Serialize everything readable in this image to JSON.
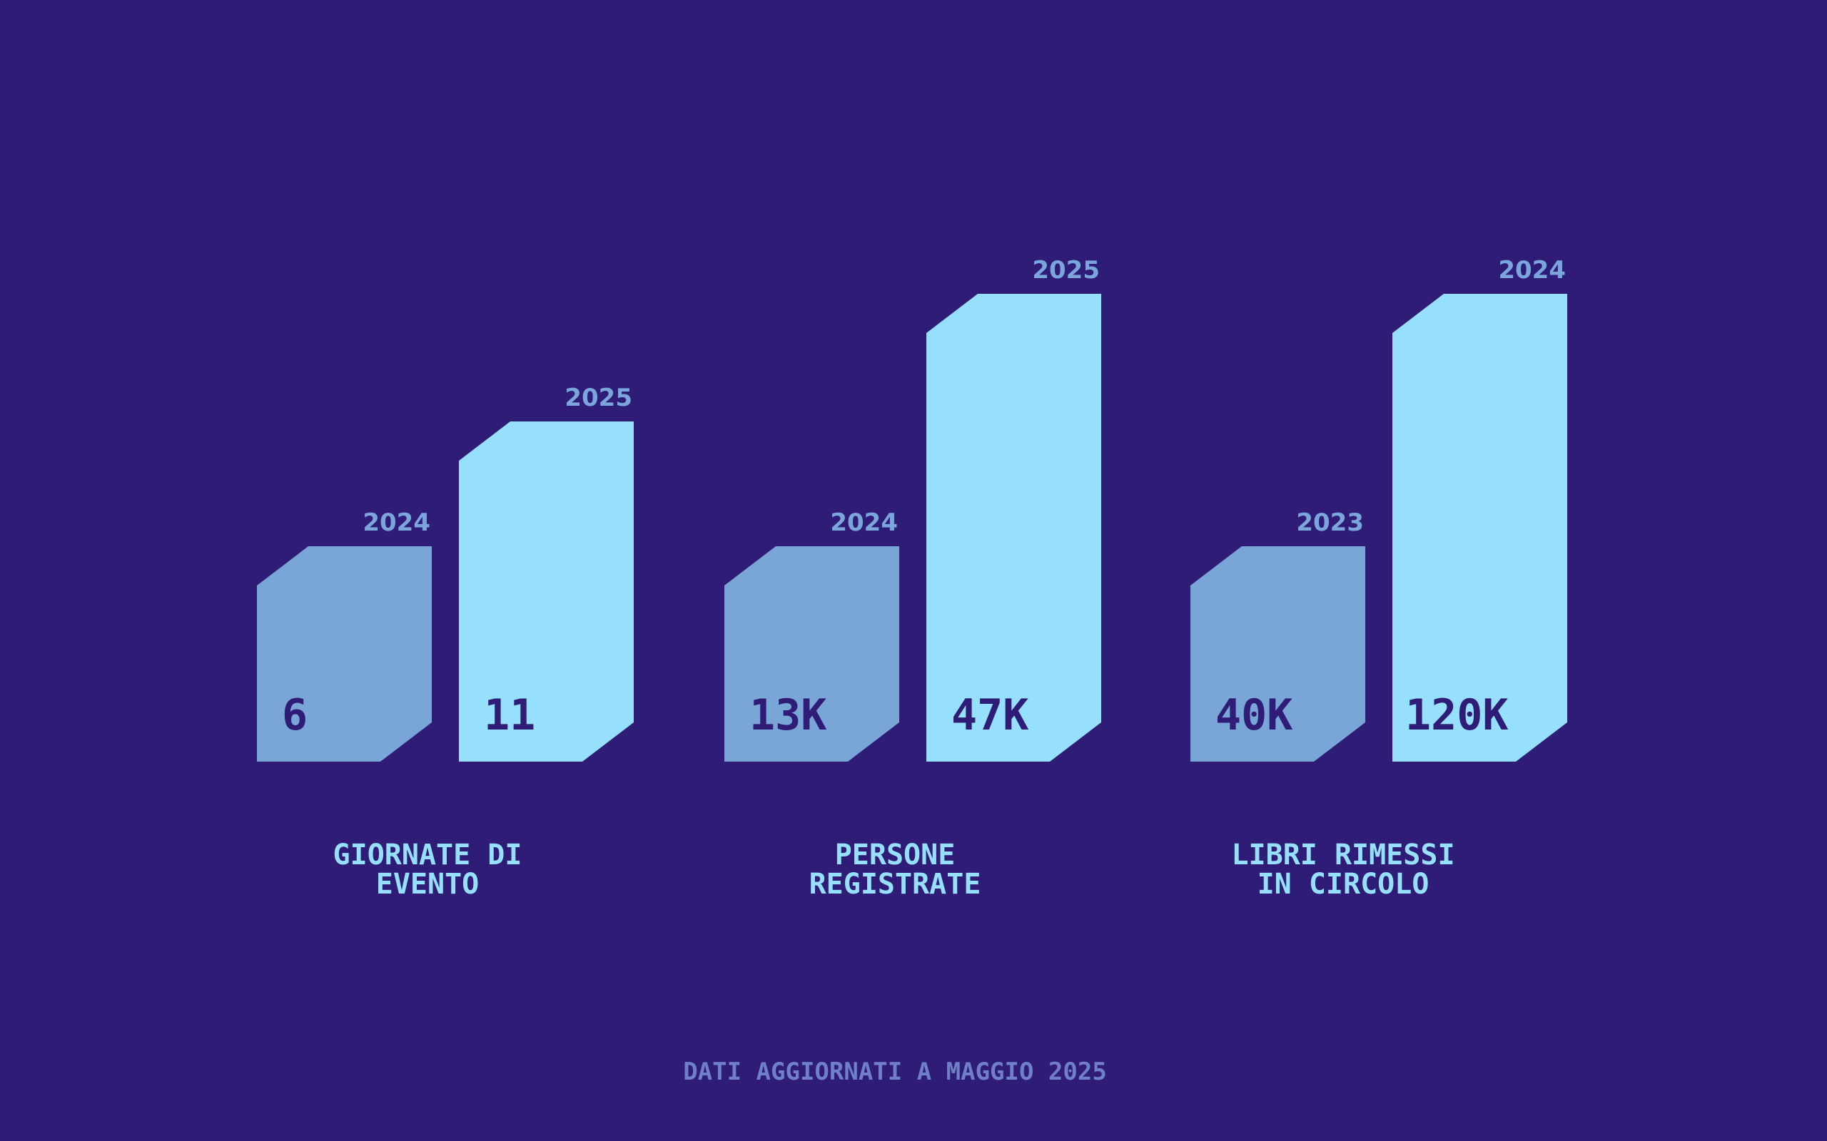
{
  "colors": {
    "background": "#2e1c77",
    "bar_previous": "#79a6d6",
    "bar_current": "#97e0fd",
    "year_label": "#7ba6dc",
    "value_label": "#2e1c77",
    "group_label": "#97e0fd",
    "footnote": "#6f7fc8"
  },
  "chart_data": {
    "type": "bar",
    "groups": [
      {
        "label_lines": [
          "GIORNATE DI",
          "EVENTO"
        ],
        "bars": [
          {
            "year": "2024",
            "value": 6,
            "display": "6"
          },
          {
            "year": "2025",
            "value": 11,
            "display": "11"
          }
        ]
      },
      {
        "label_lines": [
          "PERSONE",
          "REGISTRATE"
        ],
        "bars": [
          {
            "year": "2024",
            "value": 13000,
            "display": "13K"
          },
          {
            "year": "2025",
            "value": 47000,
            "display": "47K"
          }
        ]
      },
      {
        "label_lines": [
          "LIBRI RIMESSI",
          "IN CIRCOLO"
        ],
        "bars": [
          {
            "year": "2023",
            "value": 40000,
            "display": "40K"
          },
          {
            "year": "2024",
            "value": 120000,
            "display": "120K"
          }
        ]
      }
    ]
  },
  "footnote": "DATI AGGIORNATI A MAGGIO 2025"
}
